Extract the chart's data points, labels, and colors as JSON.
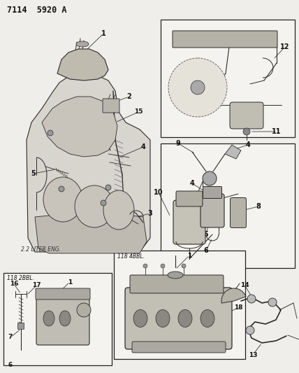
{
  "title": "7114  5920 A",
  "bg": "#f0eeea",
  "fig_width": 4.28,
  "fig_height": 5.33,
  "dpi": 100,
  "lc": "#2a2a2a",
  "tc": "#111111",
  "bec": "#222222",
  "engine_label": "2.2 LITER ENG.",
  "label2bbl": "118 2BBL.",
  "label4bbl": "118 4BBL."
}
